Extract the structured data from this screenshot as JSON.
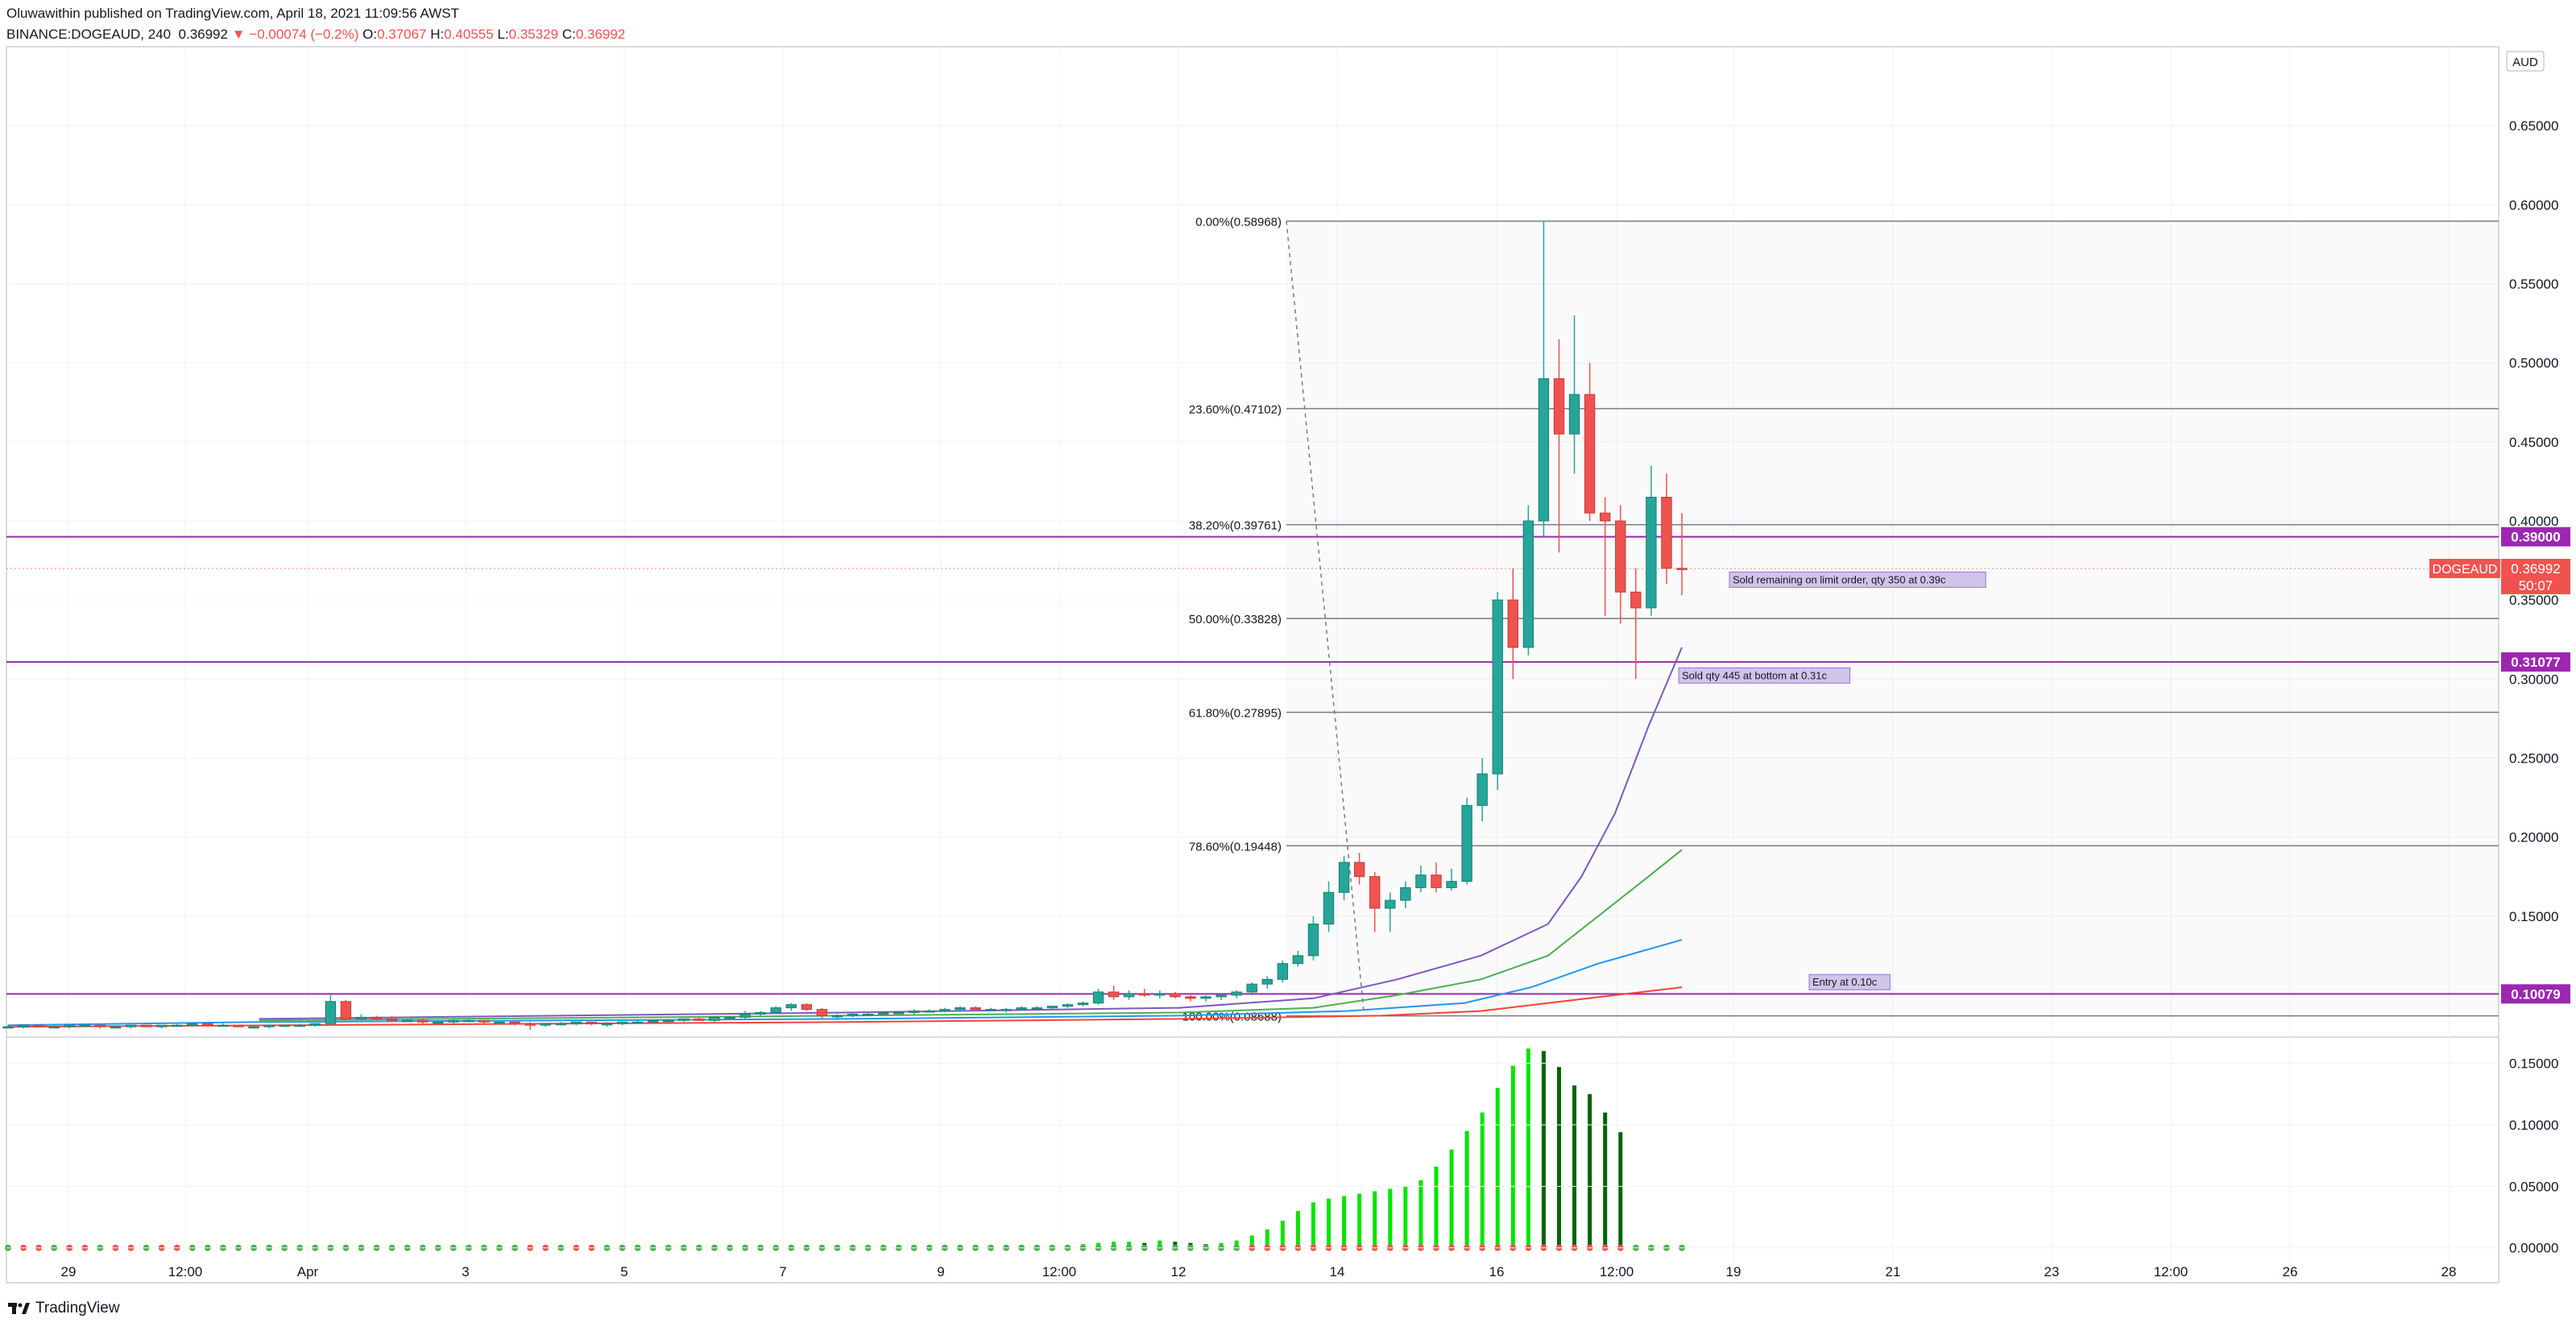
{
  "header": {
    "published": "Oluwawithin published on TradingView.com, April 18, 2021 11:09:56 AWST",
    "symbol": "BINANCE:DOGEAUD, 240",
    "last": "0.36992",
    "change": "−0.00074 (−0.2%)",
    "o_label": "O:",
    "o_value": "0.37067",
    "h_label": "H:",
    "h_value": "0.40555",
    "l_label": "L:",
    "l_value": "0.35329",
    "c_label": "C:",
    "c_value": "0.36992"
  },
  "footer": {
    "brand": "TradingView"
  },
  "colors": {
    "up": "#26a69a",
    "down": "#ef5350",
    "fib": "#787b86",
    "hline": "#9c27b0",
    "ma1": "#7e57c2",
    "ma2": "#4caf50",
    "ma3": "#2196f3",
    "ma4": "#f44336",
    "ind_up_light": "#00e600",
    "ind_up_dark": "#006400"
  },
  "chart_data": {
    "type": "candlestick",
    "currency": "AUD",
    "ylim": [
      0.075,
      0.7
    ],
    "yticks": [
      "0.65000",
      "0.60000",
      "0.55000",
      "0.50000",
      "0.45000",
      "0.40000",
      "0.35000",
      "0.30000",
      "0.25000",
      "0.20000",
      "0.15000"
    ],
    "xticks": [
      "29",
      "12:00",
      "Apr",
      "3",
      "5",
      "7",
      "9",
      "12:00",
      "12",
      "14",
      "16",
      "12:00",
      "19",
      "21",
      "23",
      "12:00",
      "26",
      "28"
    ],
    "last_price": {
      "symbol": "DOGEAUD",
      "price": "0.36992",
      "countdown": "50:07",
      "value": 0.36992
    },
    "horizontal_lines": [
      {
        "label": "0.39000",
        "value": 0.39
      },
      {
        "label": "0.31077",
        "value": 0.31077
      },
      {
        "label": "0.10079",
        "value": 0.10079
      }
    ],
    "fib_levels": [
      {
        "label": "0.00%(0.58968)",
        "value": 0.58968
      },
      {
        "label": "23.60%(0.47102)",
        "value": 0.47102
      },
      {
        "label": "38.20%(0.39761)",
        "value": 0.39761
      },
      {
        "label": "50.00%(0.33828)",
        "value": 0.33828
      },
      {
        "label": "61.80%(0.27895)",
        "value": 0.27895
      },
      {
        "label": "78.60%(0.19448)",
        "value": 0.19448
      },
      {
        "label": "100.00%(0.08688)",
        "value": 0.08688
      }
    ],
    "annotations": [
      {
        "text": "Sold remaining on limit order, qty 350 at 0.39c",
        "value": 0.3631
      },
      {
        "text": "Sold qty 445 at bottom at 0.31c",
        "value": 0.3025
      },
      {
        "text": "Entry at 0.10c",
        "value": 0.1085
      }
    ],
    "candles": [
      [
        0.08,
        0.081,
        0.079,
        0.08
      ],
      [
        0.08,
        0.081,
        0.079,
        0.081
      ],
      [
        0.081,
        0.081,
        0.08,
        0.08
      ],
      [
        0.08,
        0.081,
        0.079,
        0.08
      ],
      [
        0.08,
        0.081,
        0.079,
        0.081
      ],
      [
        0.081,
        0.082,
        0.08,
        0.081
      ],
      [
        0.081,
        0.081,
        0.079,
        0.08
      ],
      [
        0.08,
        0.081,
        0.079,
        0.08
      ],
      [
        0.08,
        0.081,
        0.079,
        0.081
      ],
      [
        0.081,
        0.081,
        0.08,
        0.08
      ],
      [
        0.08,
        0.081,
        0.079,
        0.081
      ],
      [
        0.081,
        0.082,
        0.08,
        0.081
      ],
      [
        0.081,
        0.082,
        0.08,
        0.082
      ],
      [
        0.082,
        0.082,
        0.08,
        0.081
      ],
      [
        0.081,
        0.082,
        0.08,
        0.081
      ],
      [
        0.081,
        0.081,
        0.08,
        0.08
      ],
      [
        0.08,
        0.081,
        0.079,
        0.08
      ],
      [
        0.08,
        0.081,
        0.079,
        0.081
      ],
      [
        0.081,
        0.081,
        0.08,
        0.081
      ],
      [
        0.081,
        0.082,
        0.08,
        0.081
      ],
      [
        0.081,
        0.082,
        0.08,
        0.082
      ],
      [
        0.082,
        0.1,
        0.081,
        0.096
      ],
      [
        0.096,
        0.097,
        0.084,
        0.085
      ],
      [
        0.085,
        0.088,
        0.083,
        0.086
      ],
      [
        0.086,
        0.087,
        0.084,
        0.085
      ],
      [
        0.085,
        0.087,
        0.083,
        0.084
      ],
      [
        0.084,
        0.085,
        0.083,
        0.084
      ],
      [
        0.084,
        0.085,
        0.082,
        0.083
      ],
      [
        0.083,
        0.084,
        0.082,
        0.083
      ],
      [
        0.083,
        0.085,
        0.082,
        0.084
      ],
      [
        0.084,
        0.085,
        0.083,
        0.084
      ],
      [
        0.084,
        0.084,
        0.082,
        0.083
      ],
      [
        0.083,
        0.084,
        0.082,
        0.083
      ],
      [
        0.083,
        0.083,
        0.081,
        0.082
      ],
      [
        0.082,
        0.083,
        0.078,
        0.081
      ],
      [
        0.081,
        0.082,
        0.08,
        0.082
      ],
      [
        0.082,
        0.083,
        0.081,
        0.082
      ],
      [
        0.082,
        0.083,
        0.081,
        0.083
      ],
      [
        0.083,
        0.083,
        0.081,
        0.082
      ],
      [
        0.082,
        0.083,
        0.08,
        0.082
      ],
      [
        0.082,
        0.083,
        0.081,
        0.083
      ],
      [
        0.083,
        0.084,
        0.082,
        0.083
      ],
      [
        0.083,
        0.084,
        0.082,
        0.084
      ],
      [
        0.084,
        0.085,
        0.083,
        0.084
      ],
      [
        0.084,
        0.085,
        0.083,
        0.085
      ],
      [
        0.085,
        0.086,
        0.084,
        0.084
      ],
      [
        0.084,
        0.086,
        0.083,
        0.086
      ],
      [
        0.086,
        0.087,
        0.085,
        0.086
      ],
      [
        0.086,
        0.09,
        0.085,
        0.088
      ],
      [
        0.088,
        0.09,
        0.087,
        0.089
      ],
      [
        0.089,
        0.093,
        0.088,
        0.092
      ],
      [
        0.092,
        0.095,
        0.09,
        0.094
      ],
      [
        0.094,
        0.095,
        0.09,
        0.091
      ],
      [
        0.091,
        0.092,
        0.085,
        0.087
      ],
      [
        0.087,
        0.088,
        0.085,
        0.087
      ],
      [
        0.087,
        0.089,
        0.086,
        0.088
      ],
      [
        0.088,
        0.089,
        0.087,
        0.088
      ],
      [
        0.088,
        0.09,
        0.087,
        0.089
      ],
      [
        0.089,
        0.09,
        0.088,
        0.089
      ],
      [
        0.089,
        0.091,
        0.088,
        0.09
      ],
      [
        0.09,
        0.091,
        0.089,
        0.09
      ],
      [
        0.09,
        0.092,
        0.089,
        0.091
      ],
      [
        0.091,
        0.093,
        0.09,
        0.092
      ],
      [
        0.092,
        0.093,
        0.09,
        0.091
      ],
      [
        0.091,
        0.092,
        0.09,
        0.091
      ],
      [
        0.091,
        0.092,
        0.089,
        0.091
      ],
      [
        0.091,
        0.093,
        0.09,
        0.092
      ],
      [
        0.092,
        0.093,
        0.091,
        0.092
      ],
      [
        0.092,
        0.093,
        0.091,
        0.093
      ],
      [
        0.093,
        0.095,
        0.092,
        0.094
      ],
      [
        0.094,
        0.096,
        0.093,
        0.095
      ],
      [
        0.095,
        0.104,
        0.094,
        0.102
      ],
      [
        0.102,
        0.106,
        0.097,
        0.099
      ],
      [
        0.099,
        0.103,
        0.097,
        0.101
      ],
      [
        0.101,
        0.104,
        0.099,
        0.1
      ],
      [
        0.1,
        0.103,
        0.098,
        0.101
      ],
      [
        0.101,
        0.102,
        0.098,
        0.099
      ],
      [
        0.099,
        0.101,
        0.096,
        0.098
      ],
      [
        0.098,
        0.1,
        0.096,
        0.099
      ],
      [
        0.099,
        0.101,
        0.097,
        0.1
      ],
      [
        0.1,
        0.103,
        0.098,
        0.102
      ],
      [
        0.102,
        0.108,
        0.1,
        0.107
      ],
      [
        0.107,
        0.112,
        0.104,
        0.11
      ],
      [
        0.11,
        0.122,
        0.108,
        0.12
      ],
      [
        0.12,
        0.128,
        0.118,
        0.125
      ],
      [
        0.125,
        0.15,
        0.122,
        0.145
      ],
      [
        0.145,
        0.172,
        0.14,
        0.165
      ],
      [
        0.165,
        0.188,
        0.16,
        0.184
      ],
      [
        0.184,
        0.19,
        0.17,
        0.175
      ],
      [
        0.175,
        0.178,
        0.14,
        0.155
      ],
      [
        0.155,
        0.165,
        0.14,
        0.16
      ],
      [
        0.16,
        0.172,
        0.155,
        0.168
      ],
      [
        0.168,
        0.182,
        0.165,
        0.176
      ],
      [
        0.176,
        0.184,
        0.165,
        0.168
      ],
      [
        0.168,
        0.18,
        0.166,
        0.172
      ],
      [
        0.172,
        0.225,
        0.17,
        0.22
      ],
      [
        0.22,
        0.25,
        0.21,
        0.24
      ],
      [
        0.24,
        0.355,
        0.23,
        0.35
      ],
      [
        0.35,
        0.37,
        0.3,
        0.32
      ],
      [
        0.32,
        0.41,
        0.315,
        0.4
      ],
      [
        0.4,
        0.59,
        0.39,
        0.49
      ],
      [
        0.49,
        0.515,
        0.38,
        0.455
      ],
      [
        0.455,
        0.53,
        0.43,
        0.48
      ],
      [
        0.48,
        0.5,
        0.4,
        0.405
      ],
      [
        0.405,
        0.415,
        0.34,
        0.4
      ],
      [
        0.4,
        0.41,
        0.335,
        0.355
      ],
      [
        0.355,
        0.37,
        0.3,
        0.345
      ],
      [
        0.345,
        0.435,
        0.34,
        0.415
      ],
      [
        0.415,
        0.43,
        0.36,
        0.37
      ],
      [
        0.37,
        0.405,
        0.353,
        0.36992
      ]
    ],
    "moving_averages": [
      {
        "color": "#7e57c2",
        "points": [
          [
            0.15,
            0.085
          ],
          [
            0.5,
            0.089
          ],
          [
            0.7,
            0.092
          ],
          [
            0.78,
            0.098
          ],
          [
            0.83,
            0.11
          ],
          [
            0.88,
            0.125
          ],
          [
            0.92,
            0.145
          ],
          [
            0.94,
            0.175
          ],
          [
            0.96,
            0.215
          ],
          [
            0.98,
            0.27
          ],
          [
            1.0,
            0.32
          ]
        ]
      },
      {
        "color": "#4caf50",
        "points": [
          [
            0.15,
            0.084
          ],
          [
            0.5,
            0.087
          ],
          [
            0.7,
            0.089
          ],
          [
            0.78,
            0.092
          ],
          [
            0.83,
            0.1
          ],
          [
            0.88,
            0.11
          ],
          [
            0.92,
            0.125
          ],
          [
            0.95,
            0.15
          ],
          [
            0.98,
            0.175
          ],
          [
            1.0,
            0.192
          ]
        ]
      },
      {
        "color": "#2196f3",
        "points": [
          [
            0.0,
            0.081
          ],
          [
            0.15,
            0.083
          ],
          [
            0.5,
            0.085
          ],
          [
            0.7,
            0.087
          ],
          [
            0.8,
            0.09
          ],
          [
            0.87,
            0.095
          ],
          [
            0.91,
            0.105
          ],
          [
            0.95,
            0.12
          ],
          [
            1.0,
            0.135
          ]
        ]
      },
      {
        "color": "#f44336",
        "points": [
          [
            0.0,
            0.08
          ],
          [
            0.5,
            0.083
          ],
          [
            0.7,
            0.085
          ],
          [
            0.82,
            0.087
          ],
          [
            0.88,
            0.09
          ],
          [
            0.92,
            0.095
          ],
          [
            0.96,
            0.1
          ],
          [
            1.0,
            0.105
          ]
        ]
      }
    ],
    "indicator": {
      "ylim": [
        -0.01,
        0.17
      ],
      "yticks": [
        "0.15000",
        "0.10000",
        "0.05000",
        "0.00000"
      ],
      "start_index": 69,
      "bars": [
        0.002,
        0.003,
        0.004,
        0.005,
        0.005,
        0.004,
        0.006,
        0.005,
        0.004,
        0.003,
        0.004,
        0.006,
        0.01,
        0.015,
        0.022,
        0.03,
        0.037,
        0.04,
        0.042,
        0.044,
        0.046,
        0.048,
        0.05,
        0.055,
        0.066,
        0.08,
        0.095,
        0.11,
        0.13,
        0.148,
        0.162,
        0.16,
        0.147,
        0.132,
        0.125,
        0.11,
        0.094
      ]
    }
  }
}
